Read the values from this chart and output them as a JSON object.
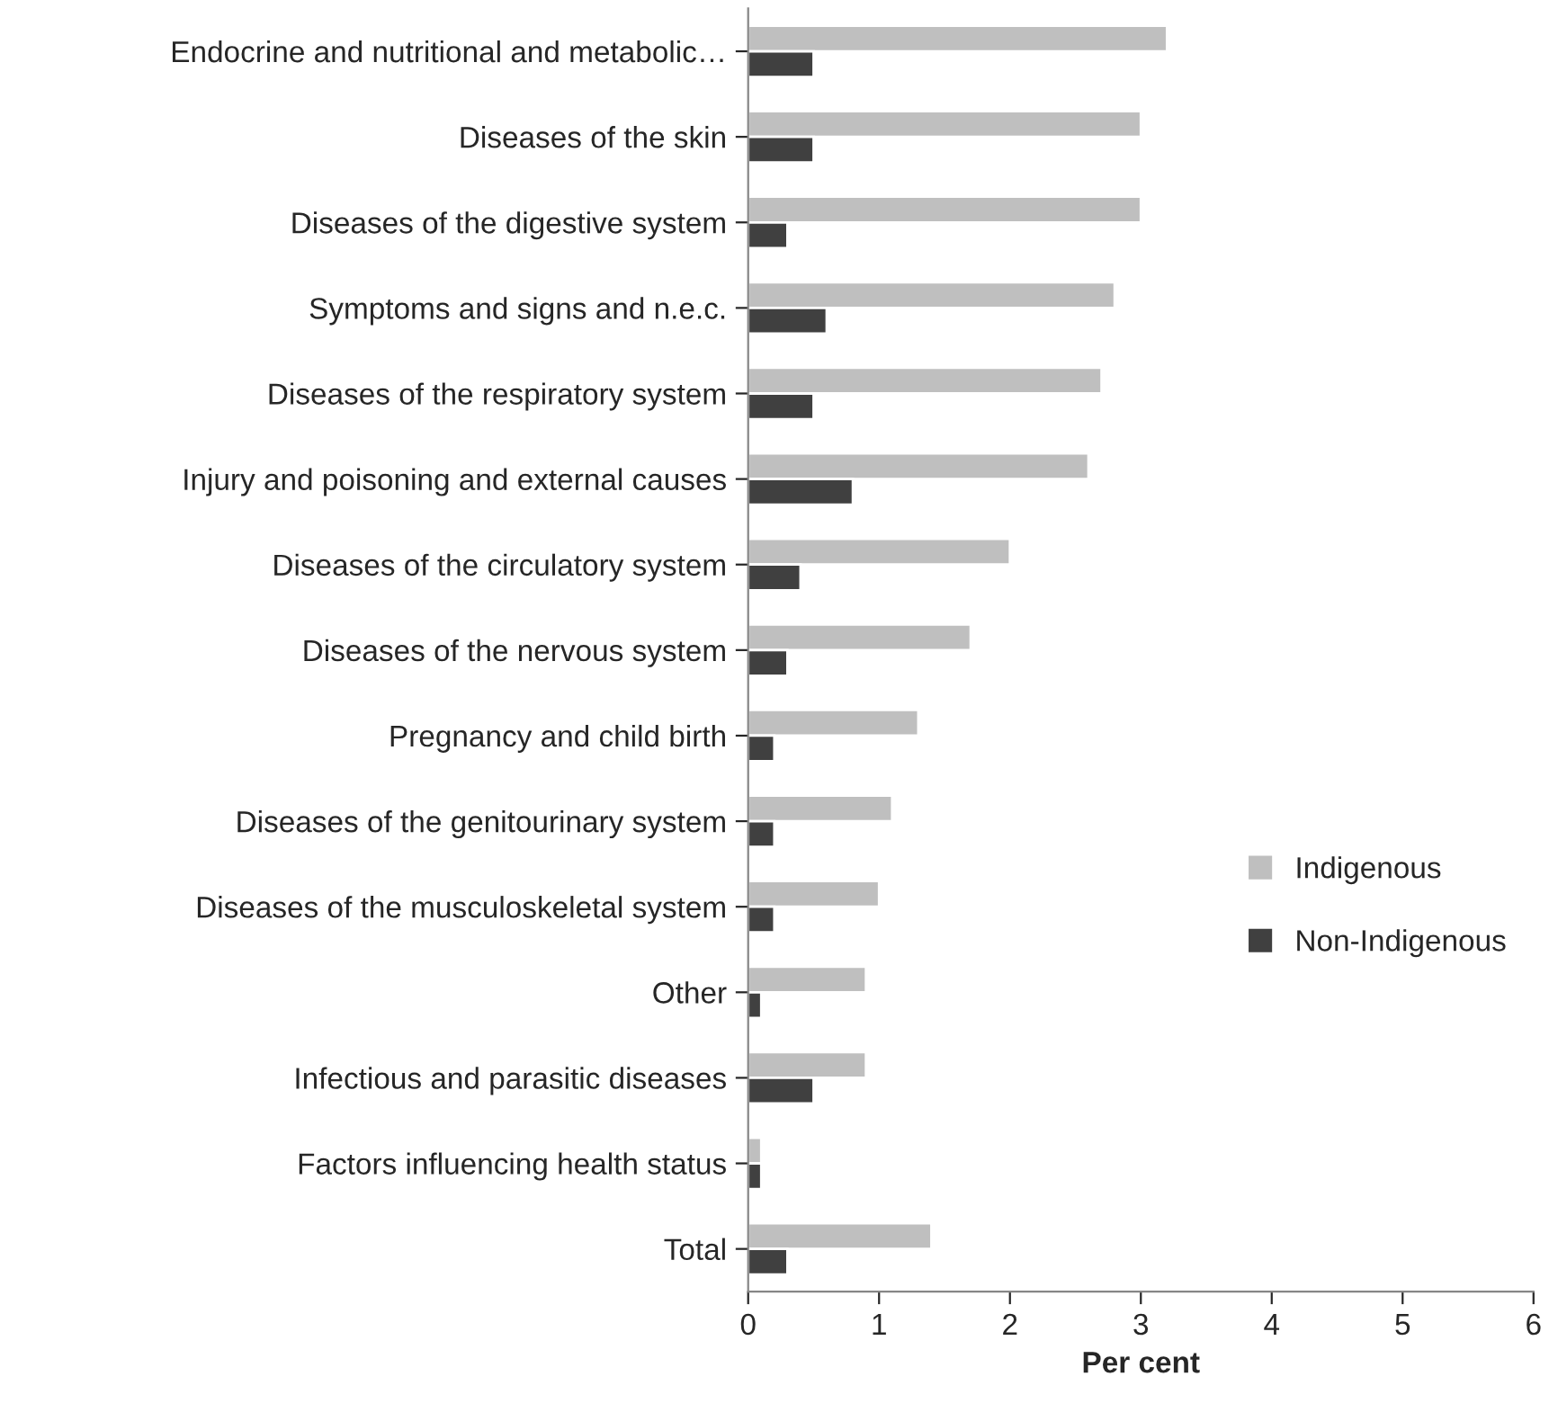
{
  "chart_data": {
    "type": "bar",
    "orientation": "horizontal",
    "xlabel": "Per cent",
    "categories": [
      "Endocrine and nutritional and metabolic…",
      "Diseases of the skin",
      "Diseases of the digestive system",
      "Symptoms and signs and n.e.c.",
      "Diseases of the respiratory system",
      "Injury and poisoning and external causes",
      "Diseases of the circulatory system",
      "Diseases of the nervous system",
      "Pregnancy and child birth",
      "Diseases of the genitourinary system",
      "Diseases of the musculoskeletal system",
      "Other",
      "Infectious and parasitic diseases",
      "Factors influencing health status",
      "Total"
    ],
    "series": [
      {
        "name": "Indigenous",
        "color": "#bfbfbf",
        "values": [
          3.2,
          3.0,
          3.0,
          2.8,
          2.7,
          2.6,
          2.0,
          1.7,
          1.3,
          1.1,
          1.0,
          0.9,
          0.9,
          0.1,
          1.4
        ]
      },
      {
        "name": "Non-Indigenous",
        "color": "#404040",
        "values": [
          0.5,
          0.5,
          0.3,
          0.6,
          0.5,
          0.8,
          0.4,
          0.3,
          0.2,
          0.2,
          0.2,
          0.1,
          0.5,
          0.1,
          0.3
        ]
      }
    ],
    "xlim": [
      0,
      6
    ],
    "xticks": [
      0,
      1,
      2,
      3,
      4,
      5,
      6
    ],
    "grid": false,
    "legend": "right"
  }
}
